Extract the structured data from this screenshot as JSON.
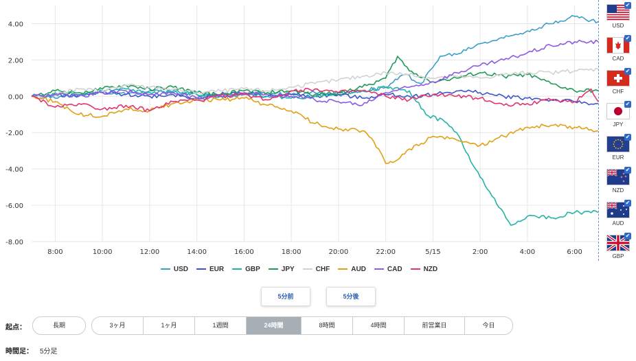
{
  "chart_data": {
    "type": "line",
    "title": "",
    "xlabel": "",
    "ylabel": "",
    "ylim": [
      -8,
      5
    ],
    "yticks": [
      "4.00",
      "2.00",
      "0.00",
      "-2.00",
      "-4.00",
      "-6.00",
      "-8.00"
    ],
    "ytick_values": [
      4,
      2,
      0,
      -2,
      -4,
      -6,
      -8
    ],
    "xticks": [
      "8:00",
      "10:00",
      "12:00",
      "14:00",
      "16:00",
      "18:00",
      "20:00",
      "22:00",
      "5/15",
      "2:00",
      "4:00",
      "6:00"
    ],
    "xtick_hours": [
      1,
      3,
      5,
      7,
      9,
      11,
      13,
      15,
      17,
      19,
      21,
      23
    ],
    "xlim_hours": [
      0,
      24
    ],
    "grid": true,
    "legend_position": "bottom",
    "series": [
      {
        "name": "USD",
        "color": "#3c9ec6",
        "values": [
          [
            0,
            0
          ],
          [
            1,
            -0.1
          ],
          [
            2,
            0.1
          ],
          [
            3,
            0.2
          ],
          [
            4,
            0.1
          ],
          [
            5,
            0.3
          ],
          [
            6,
            0.2
          ],
          [
            7,
            0.1
          ],
          [
            8,
            0.0
          ],
          [
            9,
            0.1
          ],
          [
            10,
            0.2
          ],
          [
            11,
            0.1
          ],
          [
            12,
            0.2
          ],
          [
            13,
            0.1
          ],
          [
            14,
            0.3
          ],
          [
            15,
            0.5
          ],
          [
            15.8,
            1.2
          ],
          [
            16.5,
            0.7
          ],
          [
            17,
            1.6
          ],
          [
            17.3,
            2.2
          ],
          [
            18,
            2.3
          ],
          [
            19,
            2.9
          ],
          [
            20,
            3.2
          ],
          [
            21,
            3.6
          ],
          [
            22,
            4.0
          ],
          [
            23,
            4.4
          ],
          [
            23.5,
            4.2
          ],
          [
            24,
            4.1
          ]
        ]
      },
      {
        "name": "EUR",
        "color": "#3b55c9",
        "values": [
          [
            0,
            0
          ],
          [
            1,
            0.1
          ],
          [
            2,
            0.0
          ],
          [
            3,
            0.2
          ],
          [
            4,
            0.1
          ],
          [
            5,
            0.0
          ],
          [
            6,
            0.1
          ],
          [
            7,
            -0.1
          ],
          [
            8,
            0.1
          ],
          [
            9,
            0.2
          ],
          [
            10,
            0.0
          ],
          [
            11,
            0.1
          ],
          [
            12,
            0.0
          ],
          [
            13,
            0.1
          ],
          [
            14,
            -0.1
          ],
          [
            15,
            0.1
          ],
          [
            16,
            0.0
          ],
          [
            17,
            0.1
          ],
          [
            18,
            0.3
          ],
          [
            19,
            0.2
          ],
          [
            20,
            0.0
          ],
          [
            21,
            -0.1
          ],
          [
            22,
            -0.2
          ],
          [
            23,
            -0.3
          ],
          [
            24,
            -0.4
          ]
        ]
      },
      {
        "name": "GBP",
        "color": "#22b3a6",
        "values": [
          [
            0,
            0
          ],
          [
            1,
            0.2
          ],
          [
            2,
            0.1
          ],
          [
            3,
            0.3
          ],
          [
            4,
            0.4
          ],
          [
            5,
            0.2
          ],
          [
            6,
            0.3
          ],
          [
            7,
            0.1
          ],
          [
            8,
            0.0
          ],
          [
            9,
            0.2
          ],
          [
            10,
            0.0
          ],
          [
            11,
            -0.1
          ],
          [
            12,
            0.0
          ],
          [
            13,
            0.2
          ],
          [
            14,
            0.3
          ],
          [
            15,
            0.5
          ],
          [
            16,
            0.3
          ],
          [
            16.7,
            -1.0
          ],
          [
            17.5,
            -1.4
          ],
          [
            18,
            -2.0
          ],
          [
            18.7,
            -3.8
          ],
          [
            19.5,
            -5.5
          ],
          [
            20.3,
            -7.1
          ],
          [
            21,
            -6.6
          ],
          [
            22,
            -6.7
          ],
          [
            23,
            -6.4
          ],
          [
            24,
            -6.4
          ]
        ]
      },
      {
        "name": "JPY",
        "color": "#1f9a58",
        "values": [
          [
            0,
            0
          ],
          [
            1,
            0.3
          ],
          [
            2,
            0.2
          ],
          [
            3,
            0.4
          ],
          [
            4,
            0.6
          ],
          [
            5,
            0.4
          ],
          [
            6,
            0.5
          ],
          [
            7,
            0.2
          ],
          [
            8,
            0.1
          ],
          [
            9,
            0.3
          ],
          [
            10,
            0.2
          ],
          [
            11,
            0.3
          ],
          [
            12,
            0.1
          ],
          [
            13,
            0.2
          ],
          [
            14,
            0.5
          ],
          [
            15,
            1.0
          ],
          [
            15.5,
            2.2
          ],
          [
            16,
            1.4
          ],
          [
            17,
            0.8
          ],
          [
            18,
            1.0
          ],
          [
            19,
            1.3
          ],
          [
            20,
            1.1
          ],
          [
            21,
            1.2
          ],
          [
            22,
            0.7
          ],
          [
            23,
            0.3
          ],
          [
            24,
            0.3
          ]
        ]
      },
      {
        "name": "CHF",
        "color": "#d2d2d2",
        "values": [
          [
            0,
            0
          ],
          [
            1,
            0.1
          ],
          [
            2,
            0.4
          ],
          [
            3,
            0.3
          ],
          [
            4,
            0.6
          ],
          [
            5,
            0.5
          ],
          [
            6,
            0.4
          ],
          [
            7,
            0.2
          ],
          [
            8,
            0.3
          ],
          [
            9,
            0.4
          ],
          [
            10,
            0.3
          ],
          [
            11,
            0.5
          ],
          [
            12,
            0.7
          ],
          [
            13,
            0.9
          ],
          [
            14,
            1.1
          ],
          [
            15,
            1.3
          ],
          [
            16,
            1.2
          ],
          [
            17,
            1.0
          ],
          [
            18,
            1.1
          ],
          [
            19,
            1.0
          ],
          [
            20,
            1.2
          ],
          [
            21,
            1.3
          ],
          [
            22,
            1.3
          ],
          [
            23,
            1.4
          ],
          [
            24,
            1.5
          ]
        ]
      },
      {
        "name": "AUD",
        "color": "#e0a015",
        "values": [
          [
            0,
            0
          ],
          [
            1,
            -0.3
          ],
          [
            2,
            -1.0
          ],
          [
            3,
            -1.1
          ],
          [
            4,
            -0.7
          ],
          [
            5,
            -0.8
          ],
          [
            6,
            -0.4
          ],
          [
            7,
            -0.2
          ],
          [
            8,
            -0.2
          ],
          [
            9,
            -0.1
          ],
          [
            10,
            -0.5
          ],
          [
            11,
            -0.8
          ],
          [
            12,
            -1.5
          ],
          [
            13,
            -1.8
          ],
          [
            14,
            -1.9
          ],
          [
            14.5,
            -2.5
          ],
          [
            15,
            -3.7
          ],
          [
            15.5,
            -3.5
          ],
          [
            16,
            -2.9
          ],
          [
            16.5,
            -2.6
          ],
          [
            17,
            -2.2
          ],
          [
            18,
            -2.4
          ],
          [
            19,
            -2.7
          ],
          [
            20,
            -2.2
          ],
          [
            21,
            -1.7
          ],
          [
            22,
            -1.6
          ],
          [
            23,
            -1.7
          ],
          [
            24,
            -1.9
          ]
        ]
      },
      {
        "name": "CAD",
        "color": "#8e58e6",
        "values": [
          [
            0,
            0
          ],
          [
            1,
            0.1
          ],
          [
            2,
            0.0
          ],
          [
            3,
            0.2
          ],
          [
            4,
            0.3
          ],
          [
            5,
            0.1
          ],
          [
            6,
            0.2
          ],
          [
            7,
            -0.1
          ],
          [
            8,
            0.0
          ],
          [
            9,
            0.2
          ],
          [
            10,
            0.1
          ],
          [
            11,
            0.0
          ],
          [
            12,
            -0.2
          ],
          [
            13,
            -0.3
          ],
          [
            14,
            -0.5
          ],
          [
            15,
            0.2
          ],
          [
            16,
            0.5
          ],
          [
            17,
            0.8
          ],
          [
            18,
            1.3
          ],
          [
            19,
            1.7
          ],
          [
            20,
            2.0
          ],
          [
            21,
            2.4
          ],
          [
            22,
            2.8
          ],
          [
            23,
            3.0
          ],
          [
            24,
            3.0
          ]
        ]
      },
      {
        "name": "NZD",
        "color": "#e2336f",
        "values": [
          [
            0,
            0
          ],
          [
            1,
            -0.6
          ],
          [
            2,
            -0.4
          ],
          [
            3,
            -0.7
          ],
          [
            4,
            -0.5
          ],
          [
            5,
            -0.8
          ],
          [
            6,
            -0.3
          ],
          [
            7,
            -0.2
          ],
          [
            8,
            0.0
          ],
          [
            9,
            0.1
          ],
          [
            10,
            -0.2
          ],
          [
            11,
            0.3
          ],
          [
            12,
            0.4
          ],
          [
            13,
            0.2
          ],
          [
            14,
            0.3
          ],
          [
            15,
            0.0
          ],
          [
            16,
            -0.2
          ],
          [
            17,
            0.1
          ],
          [
            18,
            0.0
          ],
          [
            19,
            -0.1
          ],
          [
            20,
            -0.5
          ],
          [
            21,
            -0.4
          ],
          [
            22,
            -0.2
          ],
          [
            23,
            -0.3
          ],
          [
            23.7,
            0.4
          ],
          [
            24,
            -0.3
          ]
        ]
      }
    ]
  },
  "sidebar": {
    "currencies": [
      {
        "code": "USD",
        "flag": "us"
      },
      {
        "code": "CAD",
        "flag": "ca"
      },
      {
        "code": "CHF",
        "flag": "ch"
      },
      {
        "code": "JPY",
        "flag": "jp"
      },
      {
        "code": "EUR",
        "flag": "eu"
      },
      {
        "code": "NZD",
        "flag": "nz"
      },
      {
        "code": "AUD",
        "flag": "au"
      },
      {
        "code": "GBP",
        "flag": "gb"
      }
    ],
    "check_mark": "✔"
  },
  "nav": {
    "prev_label": "5分前",
    "next_label": "5分後"
  },
  "start_point": {
    "label": "起点：",
    "long_term": "長期",
    "options": [
      "3ヶ月",
      "1ヶ月",
      "1週間",
      "24時間",
      "8時間",
      "4時間",
      "前営業日",
      "今日"
    ],
    "selected": "24時間"
  },
  "timeframe": {
    "label": "時間足：",
    "value": "5分足"
  }
}
